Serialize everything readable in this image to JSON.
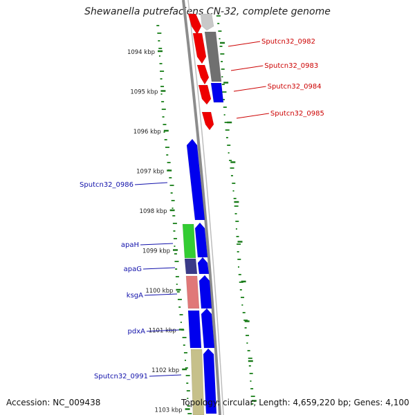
{
  "title": "Shewanella putrefaciens CN-32, complete genome",
  "footer": {
    "accession": "Accession: NC_009438",
    "topology": "Topology: circular; Length: 4,659,220 bp; Genes: 4,100"
  },
  "ticks": [
    "1094 kbp",
    "1095 kbp",
    "1096 kbp",
    "1097 kbp",
    "1098 kbp",
    "1099 kbp",
    "1100 kbp",
    "1101 kbp",
    "1102 kbp",
    "1103 kbp"
  ],
  "genes_right": [
    {
      "label": "Sputcn32_0982"
    },
    {
      "label": "Sputcn32_0983"
    },
    {
      "label": "Sputcn32_0984"
    },
    {
      "label": "Sputcn32_0985"
    }
  ],
  "genes_left": [
    {
      "label": "Sputcn32_0986"
    },
    {
      "label": "apaH"
    },
    {
      "label": "apaG"
    },
    {
      "label": "ksgA"
    },
    {
      "label": "pdxA"
    },
    {
      "label": "Sputcn32_0991"
    }
  ],
  "colors": {
    "backbone": "#8c8c8c",
    "tick": "#1a7a1a",
    "gc_dots": "#2e8b2e",
    "label_right": "#cc0000",
    "label_left": "#1010aa",
    "gene_red": "#ee0000",
    "gene_blue": "#0000ee",
    "gene_gray": "#707070",
    "gene_lightgray": "#c8c8c8",
    "gene_green": "#33cc33",
    "gene_navy": "#3a3a88",
    "gene_pink": "#e07878",
    "gene_olive": "#c6c08a"
  }
}
